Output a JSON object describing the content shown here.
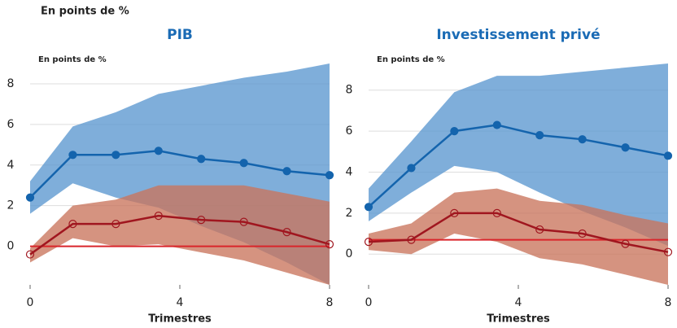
{
  "title": "En points de %",
  "chart_data": [
    {
      "type": "line",
      "title": "PIB",
      "subtitle": "En points de %",
      "xlabel": "Trimestres",
      "x": [
        0,
        1.14,
        2.29,
        3.43,
        4.57,
        5.71,
        6.86,
        8
      ],
      "xlim": [
        0,
        8
      ],
      "xticks": [
        0,
        4,
        8
      ],
      "ylim": [
        -1.9,
        9.0
      ],
      "yticks": [
        0,
        2,
        4,
        6,
        8
      ],
      "grid": true,
      "bands": [
        {
          "color": "#5b97cf",
          "upper": [
            3.2,
            5.9,
            6.6,
            7.5,
            7.9,
            8.3,
            8.6,
            9.0
          ],
          "lower": [
            1.6,
            3.1,
            2.4,
            1.9,
            1.0,
            0.2,
            -0.8,
            -1.9
          ]
        },
        {
          "color": "#c9745c",
          "upper": [
            -0.1,
            2.0,
            2.3,
            3.0,
            3.0,
            3.0,
            2.6,
            2.2
          ],
          "lower": [
            -0.8,
            0.4,
            0.0,
            0.1,
            -0.3,
            -0.7,
            -1.3,
            -1.9
          ]
        }
      ],
      "series": [
        {
          "color": "#1464ad",
          "marker": "filled",
          "values": [
            2.4,
            4.5,
            4.5,
            4.7,
            4.3,
            4.1,
            3.7,
            3.5
          ]
        },
        {
          "color": "#a0161f",
          "marker": "open",
          "values": [
            -0.4,
            1.1,
            1.1,
            1.5,
            1.3,
            1.2,
            0.7,
            0.1
          ]
        }
      ],
      "hline": 0,
      "hline_color": "#d9252b"
    },
    {
      "type": "line",
      "title": "Investissement privé",
      "subtitle": "En points de %",
      "xlabel": "Trimestres",
      "x": [
        0,
        1.14,
        2.29,
        3.43,
        4.57,
        5.71,
        6.86,
        8
      ],
      "xlim": [
        0,
        8
      ],
      "xticks": [
        0,
        4,
        8
      ],
      "ylim": [
        -1.5,
        9.3
      ],
      "yticks": [
        0,
        2,
        4,
        6,
        8
      ],
      "grid": true,
      "bands": [
        {
          "color": "#5b97cf",
          "upper": [
            3.2,
            5.5,
            7.9,
            8.7,
            8.7,
            8.9,
            9.1,
            9.3
          ],
          "lower": [
            1.6,
            3.0,
            4.3,
            4.0,
            3.0,
            2.1,
            1.3,
            0.4
          ]
        },
        {
          "color": "#c9745c",
          "upper": [
            1.0,
            1.5,
            3.0,
            3.2,
            2.6,
            2.4,
            1.9,
            1.5
          ],
          "lower": [
            0.2,
            0.0,
            1.0,
            0.6,
            -0.2,
            -0.5,
            -1.0,
            -1.5
          ]
        }
      ],
      "series": [
        {
          "color": "#1464ad",
          "marker": "filled",
          "values": [
            2.3,
            4.2,
            6.0,
            6.3,
            5.8,
            5.6,
            5.2,
            4.8
          ]
        },
        {
          "color": "#a0161f",
          "marker": "open",
          "values": [
            0.6,
            0.7,
            2.0,
            2.0,
            1.2,
            1.0,
            0.5,
            0.1
          ]
        }
      ],
      "hline": 0.7,
      "hline_color": "#d9252b"
    }
  ]
}
